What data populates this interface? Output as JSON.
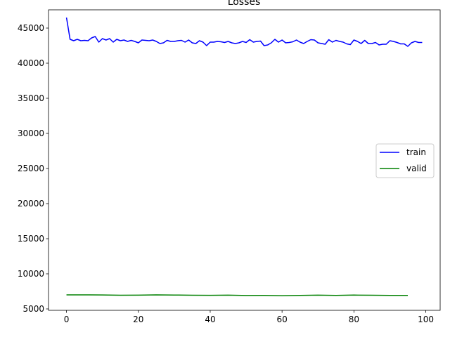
{
  "chart_data": {
    "type": "line",
    "title": "Losses",
    "xlabel": "",
    "ylabel": "",
    "xlim": [
      -5,
      104
    ],
    "ylim": [
      4800,
      47600
    ],
    "xticks": [
      0,
      20,
      40,
      60,
      80,
      100
    ],
    "yticks": [
      5000,
      10000,
      15000,
      20000,
      25000,
      30000,
      35000,
      40000,
      45000
    ],
    "grid": false,
    "legend_position": "center-right",
    "series": [
      {
        "name": "train",
        "color": "#0000ff",
        "x": [
          0,
          1,
          2,
          3,
          4,
          5,
          6,
          7,
          8,
          9,
          10,
          11,
          12,
          13,
          14,
          15,
          16,
          17,
          18,
          19,
          20,
          21,
          22,
          23,
          24,
          25,
          26,
          27,
          28,
          29,
          30,
          31,
          32,
          33,
          34,
          35,
          36,
          37,
          38,
          39,
          40,
          41,
          42,
          43,
          44,
          45,
          46,
          47,
          48,
          49,
          50,
          51,
          52,
          53,
          54,
          55,
          56,
          57,
          58,
          59,
          60,
          61,
          62,
          63,
          64,
          65,
          66,
          67,
          68,
          69,
          70,
          71,
          72,
          73,
          74,
          75,
          76,
          77,
          78,
          79,
          80,
          81,
          82,
          83,
          84,
          85,
          86,
          87,
          88,
          89,
          90,
          91,
          92,
          93,
          94,
          95,
          96,
          97,
          98,
          99
        ],
        "y": [
          46500,
          43400,
          43200,
          43400,
          43200,
          43250,
          43200,
          43600,
          43800,
          43000,
          43500,
          43300,
          43500,
          43000,
          43400,
          43200,
          43300,
          43100,
          43250,
          43100,
          42900,
          43300,
          43250,
          43200,
          43300,
          43100,
          42800,
          42900,
          43250,
          43100,
          43100,
          43200,
          43250,
          43000,
          43300,
          42900,
          42800,
          43200,
          43000,
          42500,
          43000,
          43000,
          43100,
          43050,
          42950,
          43100,
          42900,
          42800,
          42900,
          43100,
          42950,
          43350,
          43000,
          43100,
          43150,
          42500,
          42600,
          42900,
          43400,
          43000,
          43300,
          42900,
          42950,
          43050,
          43300,
          43000,
          42800,
          43100,
          43350,
          43300,
          42900,
          42800,
          42700,
          43350,
          43000,
          43250,
          43100,
          43000,
          42750,
          42650,
          43300,
          43100,
          42800,
          43250,
          42800,
          42800,
          42950,
          42600,
          42700,
          42700,
          43200,
          43100,
          42950,
          42750,
          42750,
          42400,
          42900,
          43100,
          42950,
          42950
        ]
      },
      {
        "name": "valid",
        "color": "#008000",
        "x": [
          0,
          5,
          10,
          15,
          20,
          25,
          30,
          35,
          40,
          45,
          50,
          55,
          60,
          65,
          70,
          75,
          80,
          85,
          90,
          95
        ],
        "y": [
          7000,
          7000,
          6990,
          6950,
          6960,
          7000,
          6980,
          6950,
          6940,
          6960,
          6910,
          6920,
          6880,
          6930,
          6960,
          6920,
          6970,
          6950,
          6930,
          6930
        ]
      }
    ]
  }
}
